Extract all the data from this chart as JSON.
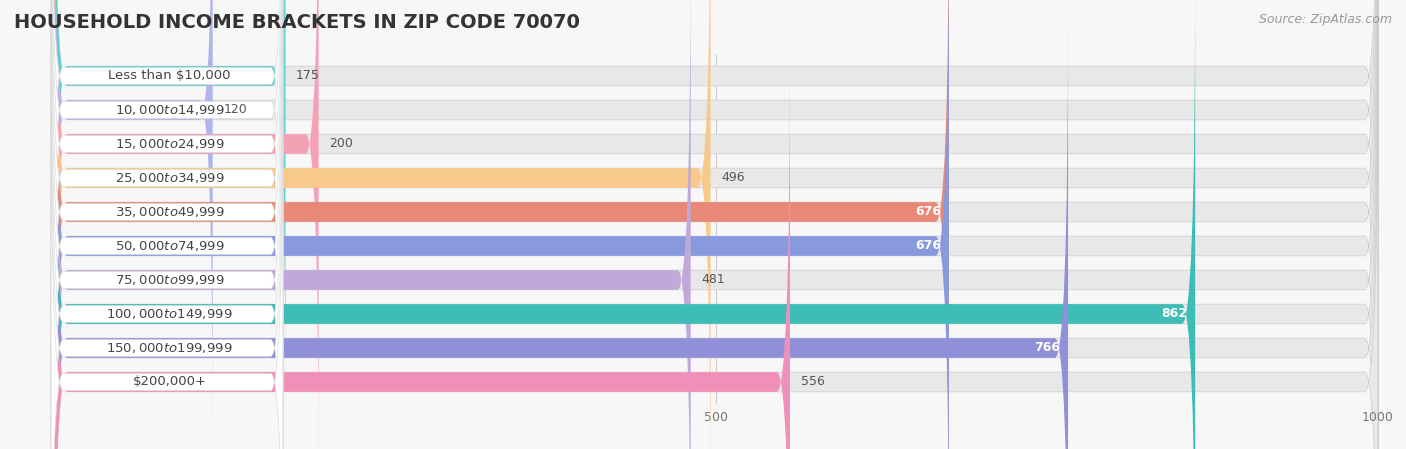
{
  "title": "HOUSEHOLD INCOME BRACKETS IN ZIP CODE 70070",
  "source": "Source: ZipAtlas.com",
  "categories": [
    "Less than $10,000",
    "$10,000 to $14,999",
    "$15,000 to $24,999",
    "$25,000 to $34,999",
    "$35,000 to $49,999",
    "$50,000 to $74,999",
    "$75,000 to $99,999",
    "$100,000 to $149,999",
    "$150,000 to $199,999",
    "$200,000+"
  ],
  "values": [
    175,
    120,
    200,
    496,
    676,
    676,
    481,
    862,
    766,
    556
  ],
  "bar_colors": [
    "#5dd0d2",
    "#b0b4ea",
    "#f4a0b5",
    "#f7c98a",
    "#e88878",
    "#8899dd",
    "#c0a8d8",
    "#3dbdb5",
    "#9090d8",
    "#f090b8"
  ],
  "value_inside": [
    false,
    false,
    false,
    false,
    true,
    true,
    false,
    true,
    true,
    false
  ],
  "xlim_left": -30,
  "xlim_right": 1000,
  "xticks": [
    0,
    500,
    1000
  ],
  "background_color": "#f7f7f7",
  "bar_bg_color": "#e8e8e8",
  "pill_bg_color": "#ffffff",
  "title_fontsize": 14,
  "source_fontsize": 9,
  "label_fontsize": 9.5,
  "value_fontsize": 9
}
